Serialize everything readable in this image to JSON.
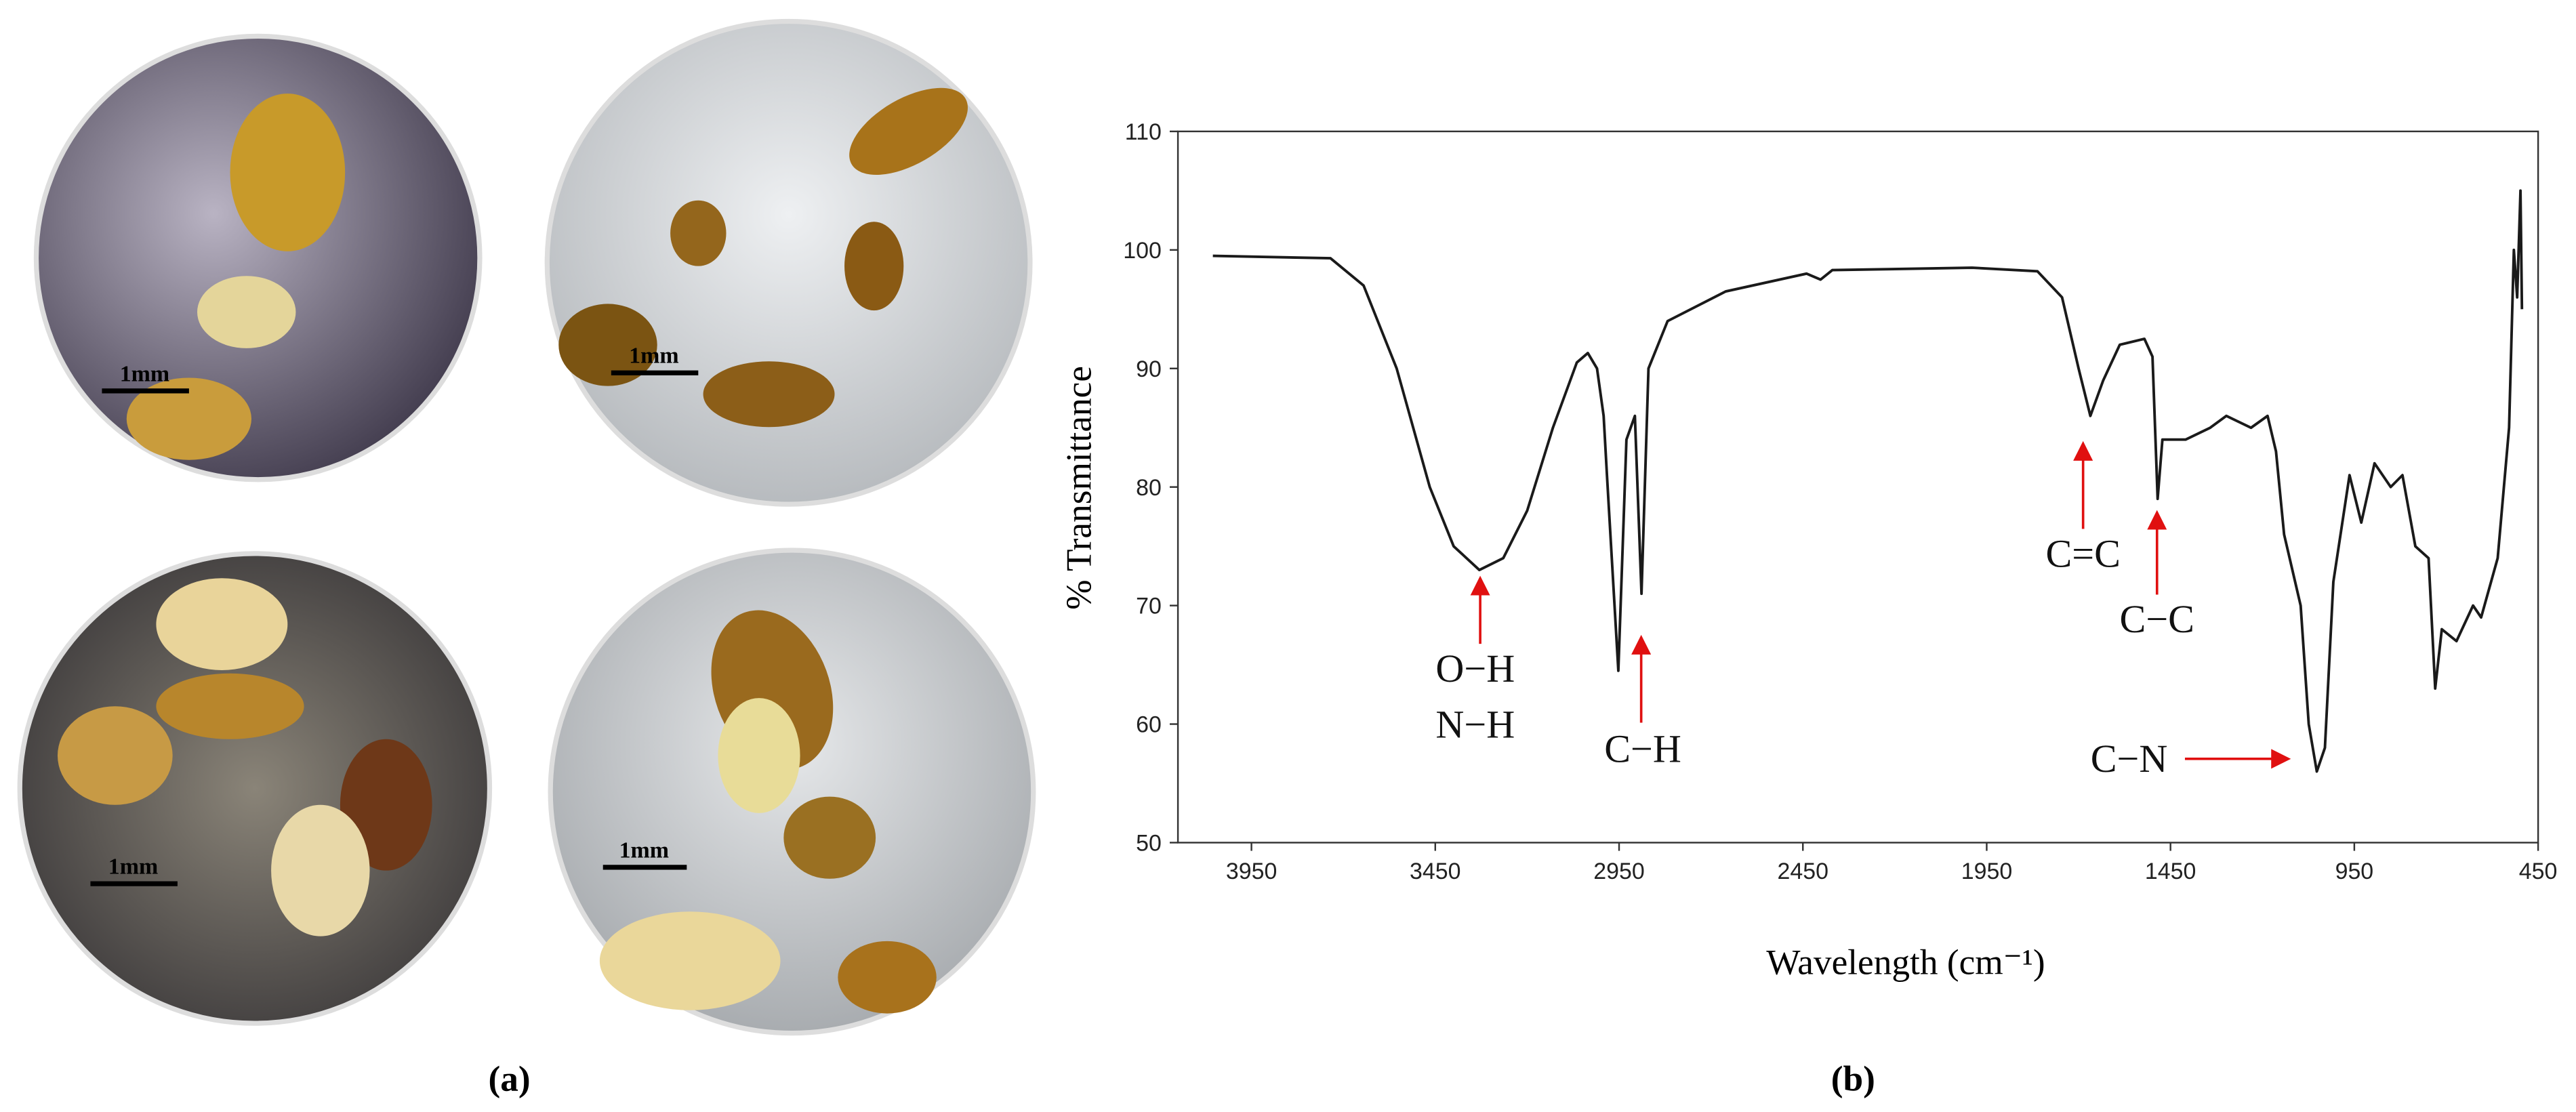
{
  "figure": {
    "scale_bars": [
      "1mm",
      "1mm",
      "1mm",
      "1mm"
    ],
    "panel_labels": [
      "(a)",
      "(b)"
    ]
  },
  "chart_data": {
    "type": "line",
    "x_label": "Wavelength (cm⁻¹)",
    "y_label": "% Transmittance",
    "xlim": [
      4150,
      450
    ],
    "xticks": [
      3950,
      3450,
      2950,
      2450,
      1950,
      1450,
      950,
      450
    ],
    "ylim": [
      50,
      110
    ],
    "yticks": [
      50,
      60,
      70,
      80,
      90,
      100,
      110
    ],
    "x": [
      4055,
      3735,
      3645,
      3555,
      3465,
      3400,
      3330,
      3265,
      3200,
      3130,
      3065,
      3035,
      3010,
      2992,
      2983,
      2952,
      2930,
      2907,
      2889,
      2870,
      2818,
      2660,
      2440,
      2402,
      2370,
      1990,
      1812,
      1745,
      1700,
      1668,
      1633,
      1588,
      1521,
      1499,
      1485,
      1472,
      1409,
      1342,
      1298,
      1231,
      1186,
      1163,
      1141,
      1096,
      1074,
      1052,
      1030,
      1007,
      963,
      931,
      895,
      851,
      819,
      784,
      748,
      730,
      712,
      672,
      627,
      605,
      560,
      529,
      516,
      507,
      498,
      494
    ],
    "series": [
      {
        "color": "#1a1a1a",
        "values": [
          99.5,
          99.3,
          97,
          90,
          80,
          75,
          73,
          74,
          78,
          85,
          90.5,
          91.3,
          90,
          86,
          81,
          64.5,
          84,
          86,
          71,
          90,
          94,
          96.5,
          98,
          97.5,
          98.3,
          98.5,
          98.2,
          96,
          90,
          86,
          89,
          92,
          92.5,
          91,
          79,
          84,
          84,
          85,
          86,
          85,
          86,
          83,
          76,
          70,
          60,
          56,
          58,
          72,
          81,
          77,
          82,
          80,
          81,
          75,
          74,
          63,
          68,
          67,
          70,
          69,
          74,
          85,
          100,
          96,
          105,
          95
        ]
      }
    ],
    "annotations": [
      "O−H",
      "N−H",
      "C−H",
      "C=C",
      "C−C",
      "C−N"
    ]
  }
}
